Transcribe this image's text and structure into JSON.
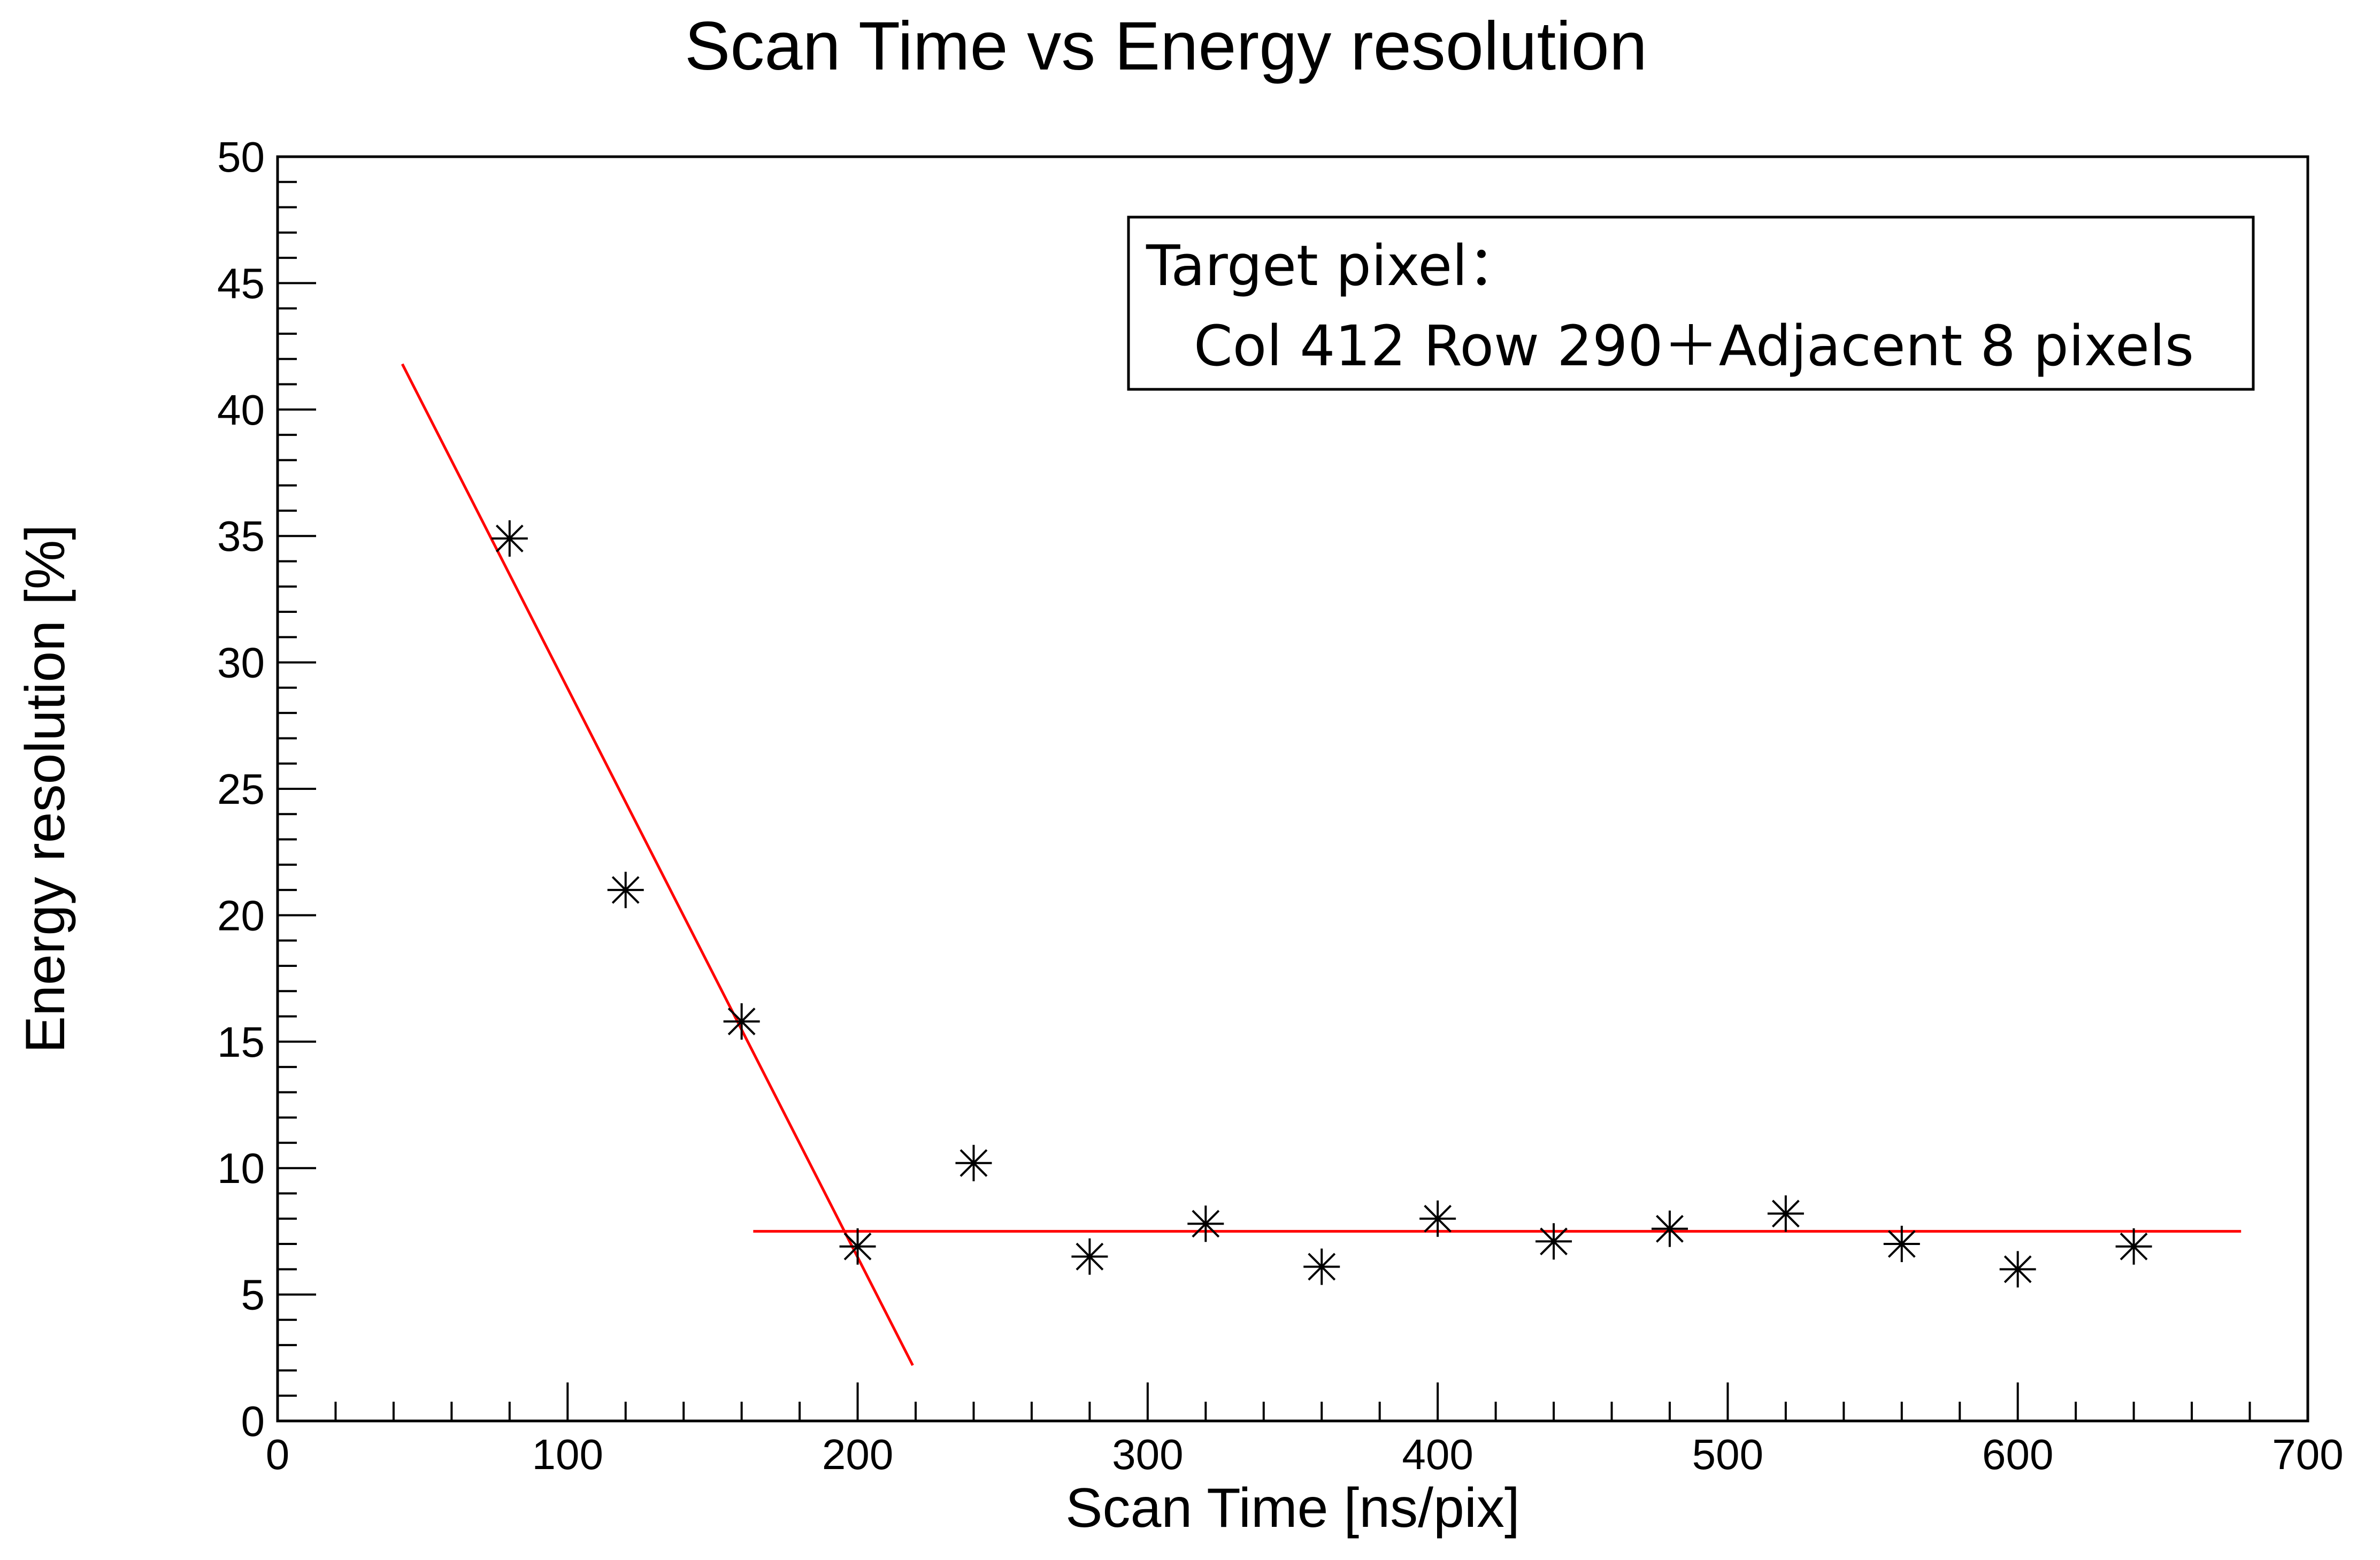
{
  "chart_data": {
    "type": "scatter",
    "title": "Scan Time vs Energy resolution",
    "xlabel": "Scan Time [ns/pix]",
    "ylabel": "Energy resolution [%]",
    "xlim": [
      0,
      700
    ],
    "ylim": [
      0,
      50
    ],
    "x_ticks": [
      0,
      100,
      200,
      300,
      400,
      500,
      600,
      700
    ],
    "y_ticks": [
      0,
      5,
      10,
      15,
      20,
      25,
      30,
      35,
      40,
      45,
      50
    ],
    "x_tick_labels": [
      "0",
      "100",
      "200",
      "300",
      "400",
      "500",
      "600",
      "700"
    ],
    "y_tick_labels": [
      "0",
      "5",
      "10",
      "15",
      "20",
      "25",
      "30",
      "35",
      "40",
      "45",
      "50"
    ],
    "grid": false,
    "marker": "asterisk",
    "marker_color": "#000000",
    "points": [
      {
        "x": 80,
        "y": 34.9
      },
      {
        "x": 120,
        "y": 21.0
      },
      {
        "x": 160,
        "y": 15.8
      },
      {
        "x": 200,
        "y": 6.9
      },
      {
        "x": 240,
        "y": 10.2
      },
      {
        "x": 280,
        "y": 6.5
      },
      {
        "x": 320,
        "y": 7.8
      },
      {
        "x": 360,
        "y": 6.1
      },
      {
        "x": 400,
        "y": 8.0
      },
      {
        "x": 440,
        "y": 7.1
      },
      {
        "x": 480,
        "y": 7.6
      },
      {
        "x": 520,
        "y": 8.2
      },
      {
        "x": 560,
        "y": 7.0
      },
      {
        "x": 600,
        "y": 6.0
      },
      {
        "x": 640,
        "y": 6.9
      }
    ],
    "fit_lines": [
      {
        "color": "#ff0000",
        "x": [
          43,
          219
        ],
        "y": [
          41.8,
          2.2
        ]
      },
      {
        "color": "#ff0000",
        "x": [
          164,
          677
        ],
        "y": [
          7.5,
          7.5
        ]
      }
    ],
    "annotation": {
      "line1": "Target pixel：",
      "line2": "Col 412 Row 290＋Adjacent 8 pixels",
      "placement": "top-right"
    }
  }
}
